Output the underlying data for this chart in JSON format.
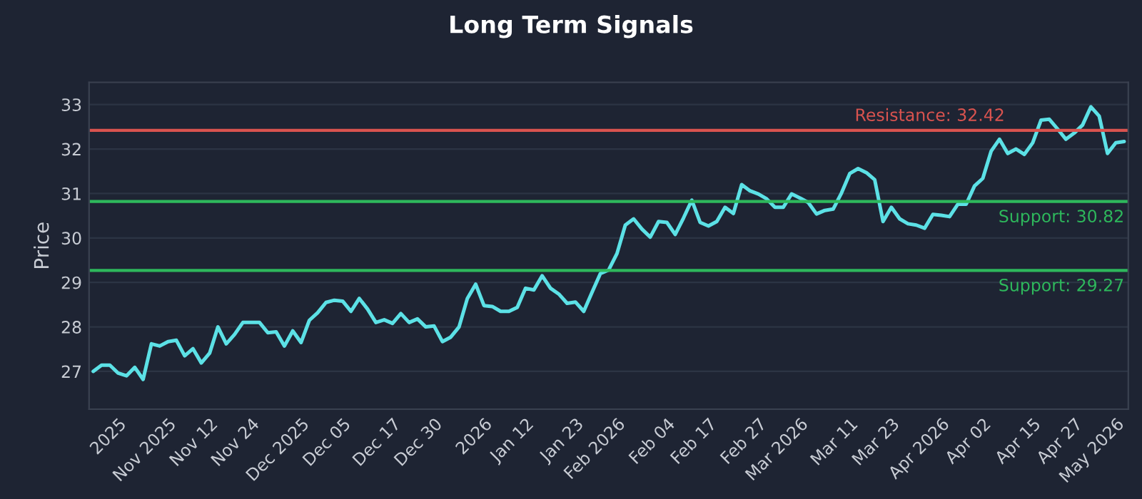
{
  "chart_data": {
    "type": "line",
    "title": "Long Term Signals",
    "ylabel": "Price",
    "series": [
      {
        "color": "#5ce1e6",
        "values": [
          27.0,
          27.14,
          27.14,
          26.96,
          26.9,
          27.09,
          26.82,
          27.62,
          27.57,
          27.67,
          27.7,
          27.35,
          27.51,
          27.19,
          27.41,
          28.0,
          27.62,
          27.83,
          28.1,
          28.1,
          28.1,
          27.87,
          27.89,
          27.57,
          27.91,
          27.65,
          28.15,
          28.32,
          28.55,
          28.6,
          28.58,
          28.35,
          28.64,
          28.4,
          28.1,
          28.16,
          28.08,
          28.3,
          28.1,
          28.18,
          28.0,
          28.02,
          27.67,
          27.77,
          28.0,
          28.64,
          28.96,
          28.48,
          28.46,
          28.35,
          28.35,
          28.44,
          28.87,
          28.83,
          29.15,
          28.87,
          28.74,
          28.53,
          28.56,
          28.35,
          28.78,
          29.2,
          29.28,
          29.65,
          30.29,
          30.43,
          30.2,
          30.02,
          30.37,
          30.35,
          30.08,
          30.45,
          30.85,
          30.35,
          30.27,
          30.37,
          30.69,
          30.55,
          31.2,
          31.06,
          30.99,
          30.88,
          30.69,
          30.69,
          30.99,
          30.9,
          30.8,
          30.54,
          30.62,
          30.65,
          31.01,
          31.45,
          31.56,
          31.47,
          31.31,
          30.37,
          30.69,
          30.43,
          30.32,
          30.29,
          30.22,
          30.53,
          30.51,
          30.48,
          30.76,
          30.76,
          31.17,
          31.34,
          31.95,
          32.22,
          31.9,
          32.0,
          31.88,
          32.14,
          32.65,
          32.67,
          32.45,
          32.22,
          32.36,
          32.54,
          32.95,
          32.74,
          31.9,
          32.14,
          32.17
        ]
      }
    ],
    "categories": [
      null,
      null,
      null,
      "2025",
      null,
      null,
      null,
      null,
      null,
      "Nov 2025",
      null,
      null,
      null,
      null,
      "Nov 12",
      null,
      null,
      null,
      null,
      "Nov 24",
      null,
      null,
      null,
      null,
      null,
      "Dec 2025",
      null,
      null,
      null,
      null,
      "Dec 05",
      null,
      null,
      null,
      null,
      null,
      "Dec 17",
      null,
      null,
      null,
      null,
      "Dec 30",
      null,
      null,
      null,
      null,
      null,
      "2026",
      null,
      null,
      null,
      null,
      "Jan 12",
      null,
      null,
      null,
      null,
      null,
      "Jan 23",
      null,
      null,
      null,
      null,
      "Feb 2026",
      null,
      null,
      null,
      null,
      null,
      "Feb 04",
      null,
      null,
      null,
      null,
      "Feb 17",
      null,
      null,
      null,
      null,
      null,
      "Feb 27",
      null,
      null,
      null,
      null,
      "Mar 2026",
      null,
      null,
      null,
      null,
      null,
      "Mar 11",
      null,
      null,
      null,
      null,
      "Mar 23",
      null,
      null,
      null,
      null,
      null,
      "Apr 2026",
      null,
      null,
      null,
      null,
      "Apr 02",
      null,
      null,
      null,
      null,
      null,
      "Apr 15",
      null,
      null,
      null,
      null,
      "Apr 27",
      null,
      null,
      null,
      null,
      "May 2026",
      null
    ],
    "ylim": [
      26.15,
      33.5
    ],
    "yticks": [
      27,
      28,
      29,
      30,
      31,
      32,
      33
    ],
    "ref_lines": [
      {
        "axis": "y",
        "value": 32.42,
        "label": "Resistance: 32.42",
        "color": "#d9534f"
      },
      {
        "axis": "y",
        "value": 30.82,
        "label": "Support: 30.82",
        "color": "#2eb85c"
      },
      {
        "axis": "y",
        "value": 29.27,
        "label": "Support: 29.27",
        "color": "#2eb85c"
      }
    ],
    "grid": "y",
    "marker": "none",
    "line_style": "solid"
  }
}
